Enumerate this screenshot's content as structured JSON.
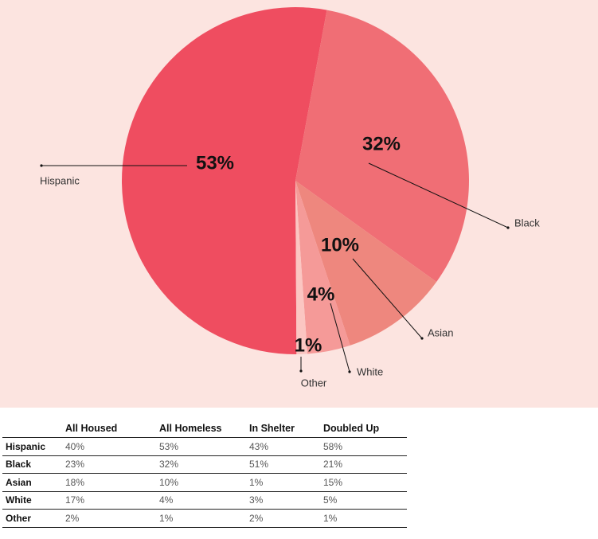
{
  "chart_data": [
    {
      "type": "pie",
      "title": "",
      "slices": [
        {
          "label": "Hispanic",
          "value": 53,
          "value_label": "53%",
          "color": "#ef4d60"
        },
        {
          "label": "Black",
          "value": 32,
          "value_label": "32%",
          "color": "#f06e75"
        },
        {
          "label": "Asian",
          "value": 10,
          "value_label": "10%",
          "color": "#ee877e"
        },
        {
          "label": "White",
          "value": 4,
          "value_label": "4%",
          "color": "#f59a98"
        },
        {
          "label": "Other",
          "value": 1,
          "value_label": "1%",
          "color": "#fbc6c2"
        }
      ]
    },
    {
      "type": "table",
      "columns": [
        "All Housed",
        "All Homeless",
        "In Shelter",
        "Doubled Up"
      ],
      "rows": [
        {
          "label": "Hispanic",
          "values": [
            "40%",
            "53%",
            "43%",
            "58%"
          ]
        },
        {
          "label": "Black",
          "values": [
            "23%",
            "32%",
            "51%",
            "21%"
          ]
        },
        {
          "label": "Asian",
          "values": [
            "18%",
            "10%",
            "1%",
            "15%"
          ]
        },
        {
          "label": "White",
          "values": [
            "17%",
            "4%",
            "3%",
            "5%"
          ]
        },
        {
          "label": "Other",
          "values": [
            "2%",
            "1%",
            "2%",
            "1%"
          ]
        }
      ]
    }
  ],
  "colors": {
    "panel_background": "#fce4e0"
  }
}
